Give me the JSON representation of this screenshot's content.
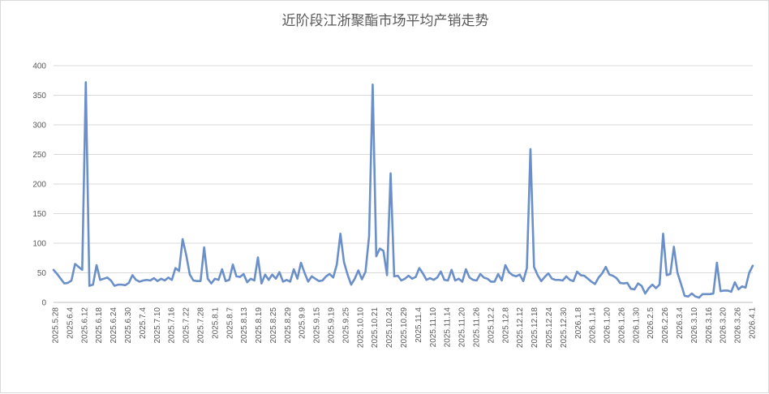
{
  "colors": {
    "series": "#6b8fc9",
    "grid": "#d9d9d9",
    "text": "#595959"
  },
  "chart_data": {
    "type": "line",
    "title": "近阶段江浙聚酯市场平均产销走势",
    "xlabel": "",
    "ylabel": "",
    "ylim": [
      0,
      400
    ],
    "yticks": [
      0,
      50,
      100,
      150,
      200,
      250,
      300,
      350,
      400
    ],
    "grid": "horizontal",
    "legend": "none",
    "xtick_labels": [
      "2025.5.28",
      "2025.6.4",
      "2025.6.12",
      "2025.6.18",
      "2025.6.24",
      "2025.6.30",
      "2025.7.4",
      "2025.7.10",
      "2025.7.16",
      "2025.7.22",
      "2025.7.28",
      "2025.8.1",
      "2025.8.7",
      "2025.8.13",
      "2025.8.19",
      "2025.8.25",
      "2025.8.29",
      "2025.9.9",
      "2025.9.15",
      "2025.9.19",
      "2025.9.25",
      "2025.10.10",
      "2025.10.21",
      "2025.10.24",
      "2025.10.29",
      "2025.11.4",
      "2025.11.10",
      "2025.11.14",
      "2025.11.20",
      "2025.11.26",
      "2025.12.2",
      "2025.12.8",
      "2025.12.12",
      "2025.12.18",
      "2025.12.24",
      "2025.12.30",
      "2026.1.8",
      "2026.1.14",
      "2026.1.20",
      "2026.1.26",
      "2026.1.30",
      "2026.2.5",
      "2026.2.26",
      "2026.3.4",
      "2026.3.10",
      "2026.3.16",
      "2026.3.20",
      "2026.3.26",
      "2026.4.1"
    ],
    "series": [
      {
        "values": [
          55,
          48,
          40,
          32,
          33,
          37,
          65,
          60,
          55,
          372,
          28,
          30,
          63,
          38,
          40,
          42,
          37,
          28,
          30,
          30,
          29,
          33,
          46,
          38,
          35,
          37,
          38,
          37,
          41,
          36,
          40,
          37,
          42,
          38,
          58,
          53,
          107,
          80,
          47,
          37,
          36,
          36,
          93,
          40,
          32,
          40,
          38,
          56,
          36,
          38,
          64,
          44,
          43,
          48,
          34,
          40,
          37,
          76,
          32,
          47,
          38,
          47,
          40,
          51,
          35,
          38,
          35,
          56,
          40,
          67,
          50,
          35,
          44,
          40,
          36,
          37,
          44,
          48,
          42,
          64,
          116,
          68,
          47,
          30,
          40,
          54,
          39,
          52,
          112,
          368,
          78,
          91,
          87,
          46,
          218,
          44,
          45,
          37,
          40,
          45,
          40,
          43,
          58,
          49,
          38,
          41,
          38,
          42,
          52,
          38,
          37,
          55,
          37,
          40,
          35,
          56,
          42,
          38,
          37,
          48,
          42,
          40,
          35,
          35,
          48,
          37,
          63,
          51,
          46,
          44,
          47,
          36,
          58,
          259,
          60,
          46,
          36,
          43,
          49,
          40,
          38,
          38,
          37,
          44,
          38,
          36,
          52,
          46,
          45,
          40,
          35,
          31,
          42,
          49,
          60,
          47,
          45,
          41,
          33,
          32,
          33,
          23,
          22,
          32,
          28,
          15,
          24,
          30,
          24,
          30,
          116,
          46,
          48,
          94,
          50,
          31,
          11,
          10,
          15,
          10,
          8,
          14,
          14,
          14,
          15,
          67,
          19,
          20,
          20,
          18,
          34,
          22,
          27,
          25,
          50,
          62
        ]
      }
    ]
  }
}
